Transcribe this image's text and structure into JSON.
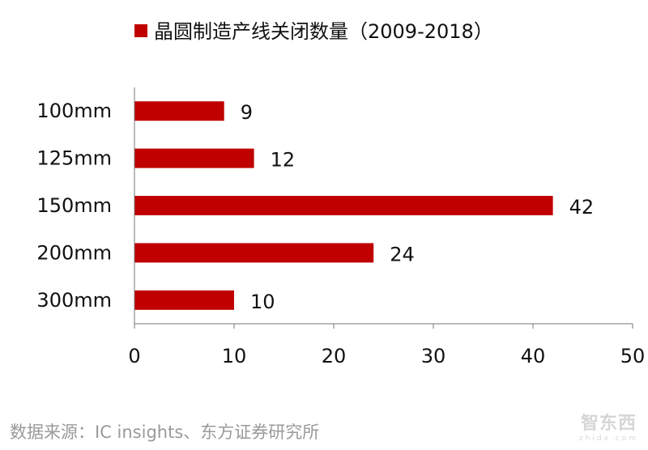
{
  "chart_data": {
    "type": "bar",
    "orientation": "horizontal",
    "categories": [
      "100mm",
      "125mm",
      "150mm",
      "200mm",
      "300mm"
    ],
    "series": [
      {
        "name": "晶圆制造产线关闭数量（2009-2018）",
        "values": [
          9,
          12,
          42,
          24,
          10
        ],
        "color": "#c00000"
      }
    ],
    "xlim": [
      0,
      50
    ],
    "xticks": [
      0,
      10,
      20,
      30,
      40,
      50
    ],
    "grid": false,
    "legend_placement": "top"
  },
  "footer": {
    "source": "数据来源：IC insights、东方证券研究所"
  },
  "watermark": {
    "logo_text": "智东西",
    "logo_sub": "zhidx.com"
  }
}
